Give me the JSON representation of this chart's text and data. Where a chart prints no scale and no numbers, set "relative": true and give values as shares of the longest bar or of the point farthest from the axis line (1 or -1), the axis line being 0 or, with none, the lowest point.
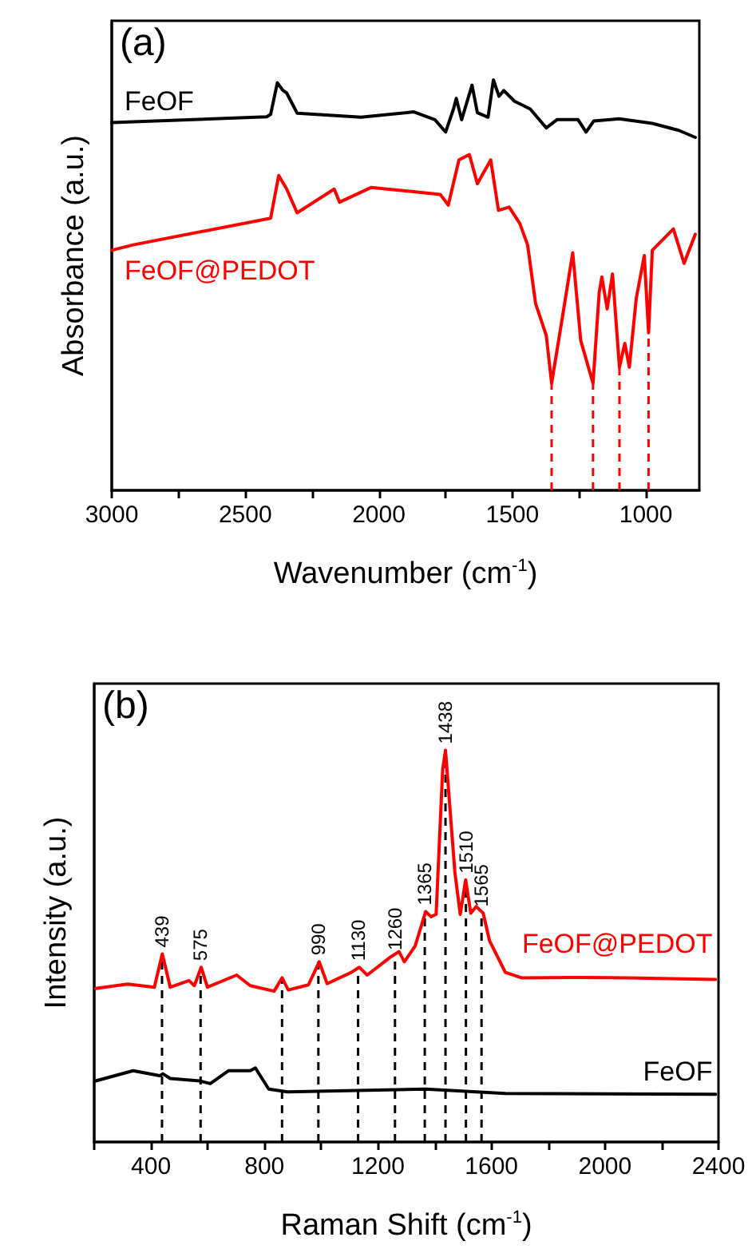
{
  "chart_data": [
    {
      "type": "line",
      "title": "(a)",
      "xlabel": "Wavenumber (cm$^{-1}$)",
      "ylabel": "Absorbance (a.u.)",
      "relative": true,
      "legend": false,
      "tick_labels": "x",
      "grid": false,
      "marker": "none",
      "line_style": "solid",
      "xlim": [
        3000,
        800
      ],
      "xticks": [
        3000,
        {
          "value": 2750,
          "label": null
        },
        2500,
        {
          "value": 2250,
          "label": null
        },
        2000,
        {
          "value": 1750,
          "label": null
        },
        1500,
        {
          "value": 1250,
          "label": null
        },
        1000
      ],
      "series": [
        {
          "name": "FeOF",
          "color": "#000000",
          "x": [
            3000,
            2420,
            2405,
            2380,
            2360,
            2345,
            2306,
            2067,
            1869,
            1790,
            1750,
            1720,
            1710,
            1690,
            1651,
            1631,
            1591,
            1571,
            1550,
            1532,
            1492,
            1433,
            1373,
            1333,
            1254,
            1224,
            1195,
            1100,
            976,
            877,
            815
          ],
          "values": [
            0.896,
            0.91,
            0.916,
            0.993,
            0.975,
            0.968,
            0.919,
            0.909,
            0.922,
            0.903,
            0.873,
            0.93,
            0.955,
            0.903,
            0.987,
            0.92,
            0.909,
            1.0,
            0.96,
            0.974,
            0.948,
            0.929,
            0.883,
            0.903,
            0.903,
            0.873,
            0.9,
            0.905,
            0.894,
            0.877,
            0.86
          ]
        },
        {
          "name": "FeOF@PEDOT",
          "color": "#ff0000",
          "x": [
            3000,
            2920,
            2405,
            2375,
            2345,
            2306,
            2167,
            2147,
            2028,
            1770,
            1740,
            1700,
            1661,
            1631,
            1581,
            1552,
            1512,
            1472,
            1443,
            1413,
            1373,
            1353,
            1314,
            1274,
            1244,
            1198,
            1175,
            1165,
            1145,
            1125,
            1099,
            1079,
            1062,
            1036,
            1006,
            990,
            976,
            956,
            897,
            857,
            815
          ],
          "values": [
            0.585,
            0.598,
            0.663,
            0.767,
            0.734,
            0.676,
            0.734,
            0.702,
            0.738,
            0.721,
            0.695,
            0.805,
            0.818,
            0.747,
            0.805,
            0.682,
            0.69,
            0.65,
            0.598,
            0.455,
            0.377,
            0.261,
            0.416,
            0.579,
            0.365,
            0.261,
            0.481,
            0.52,
            0.442,
            0.527,
            0.3,
            0.358,
            0.3,
            0.468,
            0.572,
            0.384,
            0.585,
            0.598,
            0.637,
            0.553,
            0.624
          ]
        }
      ],
      "ref_lines": [
        {
          "axis": "x",
          "value": 1353,
          "color": "#ff0000",
          "line_style": "dashed"
        },
        {
          "axis": "x",
          "value": 1198,
          "color": "#ff0000",
          "line_style": "dashed"
        },
        {
          "axis": "x",
          "value": 1099,
          "color": "#ff0000",
          "line_style": "dashed"
        },
        {
          "axis": "x",
          "value": 990,
          "color": "#ff0000",
          "line_style": "dashed"
        }
      ]
    },
    {
      "type": "line",
      "title": "(b)",
      "xlabel": "Raman Shift (cm$^{-1}$)",
      "ylabel": "Intensity (a.u.)",
      "relative": true,
      "legend": false,
      "tick_labels": "x",
      "grid": false,
      "marker": "none",
      "line_style": "solid",
      "xlim": [
        200,
        2400
      ],
      "xticks": [
        {
          "value": 200,
          "label": null
        },
        400,
        {
          "value": 600,
          "label": null
        },
        800,
        {
          "value": 1000,
          "label": null
        },
        1200,
        {
          "value": 1400,
          "label": null
        },
        1600,
        {
          "value": 1800,
          "label": null
        },
        2000,
        {
          "value": 2200,
          "label": null
        },
        2400
      ],
      "series": [
        {
          "name": "FeOF@PEDOT",
          "color": "#ff0000",
          "x": [
            205,
            318,
            412,
            440,
            468,
            534,
            553,
            577,
            599,
            702,
            750,
            834,
            862,
            884,
            955,
            993,
            1021,
            1106,
            1134,
            1162,
            1246,
            1274,
            1293,
            1331,
            1368,
            1387,
            1405,
            1428,
            1438,
            1471,
            1490,
            1509,
            1527,
            1546,
            1571,
            1593,
            1649,
            1706,
            1893,
            2080,
            2390
          ],
          "values": [
            0.392,
            0.403,
            0.395,
            0.48,
            0.395,
            0.412,
            0.399,
            0.446,
            0.395,
            0.426,
            0.399,
            0.385,
            0.419,
            0.388,
            0.401,
            0.46,
            0.404,
            0.433,
            0.446,
            0.426,
            0.473,
            0.486,
            0.46,
            0.5,
            0.588,
            0.575,
            0.581,
            0.95,
            1.0,
            0.689,
            0.581,
            0.669,
            0.584,
            0.601,
            0.584,
            0.514,
            0.433,
            0.419,
            0.42,
            0.419,
            0.415
          ]
        },
        {
          "name": "FeOF",
          "color": "#000000",
          "x": [
            206,
            337,
            431,
            442,
            468,
            571,
            609,
            674,
            750,
            768,
            815,
            881,
            1368,
            1649,
            2390
          ],
          "values": [
            0.156,
            0.182,
            0.169,
            0.174,
            0.162,
            0.156,
            0.149,
            0.182,
            0.182,
            0.189,
            0.135,
            0.128,
            0.135,
            0.124,
            0.122
          ]
        }
      ],
      "ref_lines": [
        {
          "axis": "x",
          "value": 439,
          "label": "439",
          "color": "#000000",
          "line_style": "dashed"
        },
        {
          "axis": "x",
          "value": 575,
          "label": "575",
          "color": "#000000",
          "line_style": "dashed"
        },
        {
          "axis": "x",
          "value": 862,
          "color": "#000000",
          "line_style": "dashed"
        },
        {
          "axis": "x",
          "value": 990,
          "label": "990",
          "color": "#000000",
          "line_style": "dashed"
        },
        {
          "axis": "x",
          "value": 1130,
          "label": "1130",
          "color": "#000000",
          "line_style": "dashed"
        },
        {
          "axis": "x",
          "value": 1260,
          "label": "1260",
          "color": "#000000",
          "line_style": "dashed"
        },
        {
          "axis": "x",
          "value": 1365,
          "label": "1365",
          "color": "#000000",
          "line_style": "dashed"
        },
        {
          "axis": "x",
          "value": 1438,
          "label": "1438",
          "color": "#000000",
          "line_style": "dashed"
        },
        {
          "axis": "x",
          "value": 1510,
          "label": "1510",
          "color": "#000000",
          "line_style": "dashed"
        },
        {
          "axis": "x",
          "value": 1565,
          "label": "1565",
          "color": "#000000",
          "line_style": "dashed"
        }
      ]
    }
  ]
}
